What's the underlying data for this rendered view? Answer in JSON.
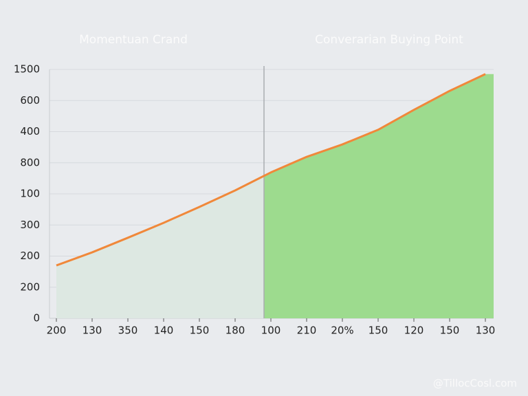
{
  "chart_data": {
    "type": "line",
    "annotations": [
      "Momentuan Crand",
      "Converarian Buying Point"
    ],
    "watermark": "@TillocCosl.com",
    "categories": [
      "200",
      "130",
      "350",
      "140",
      "150",
      "180",
      "100",
      "210",
      "20%",
      "150",
      "120",
      "150",
      "130"
    ],
    "series": [
      {
        "color": "#f0883a",
        "values": [
          1.7,
          2.12,
          2.59,
          3.07,
          3.58,
          4.11,
          4.69,
          5.19,
          5.59,
          6.06,
          6.7,
          7.31,
          7.85
        ]
      }
    ],
    "ylim": [
      0,
      8
    ],
    "yticks": [
      {
        "value": 8,
        "label": "1500"
      },
      {
        "value": 7,
        "label": "600"
      },
      {
        "value": 6,
        "label": "400"
      },
      {
        "value": 5,
        "label": "800"
      },
      {
        "value": 4,
        "label": "100"
      },
      {
        "value": 3,
        "label": "300"
      },
      {
        "value": 2,
        "label": "200"
      },
      {
        "value": 1,
        "label": "200"
      },
      {
        "value": 0,
        "label": "0"
      }
    ],
    "grid": true
  }
}
